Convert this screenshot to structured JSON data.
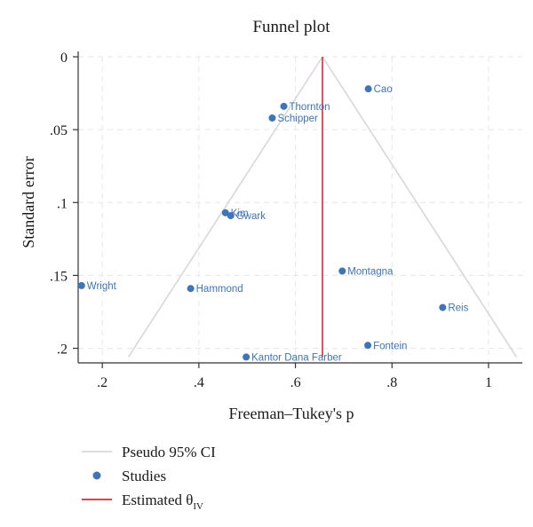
{
  "chart_data": {
    "type": "scatter",
    "title": "Funnel plot",
    "xlabel": "Freeman–Tukey's p",
    "ylabel": "Standard error",
    "xlim": [
      0.15,
      1.07
    ],
    "ylim": [
      0,
      0.21
    ],
    "y_reversed": true,
    "grid": true,
    "x_ticks": [
      0.2,
      0.4,
      0.6,
      0.8,
      1
    ],
    "x_tick_labels": [
      ".2",
      ".4",
      ".6",
      ".8",
      "1"
    ],
    "y_ticks": [
      0,
      0.05,
      0.1,
      0.15,
      0.2
    ],
    "y_tick_labels": [
      "0",
      ".05",
      ".1",
      ".15",
      ".2"
    ],
    "estimate": 0.656,
    "ci_max_se": 0.206,
    "ci_lines": [
      {
        "x": [
          0.656,
          0.254
        ],
        "y": [
          0,
          0.206
        ]
      },
      {
        "x": [
          0.656,
          1.058
        ],
        "y": [
          0,
          0.206
        ]
      }
    ],
    "series": [
      {
        "name": "Studies",
        "points": [
          {
            "label": "Cao",
            "x": 0.751,
            "y": 0.022
          },
          {
            "label": "Thornton",
            "x": 0.576,
            "y": 0.034
          },
          {
            "label": "Schipper",
            "x": 0.552,
            "y": 0.042
          },
          {
            "label": "Kim",
            "x": 0.455,
            "y": 0.107
          },
          {
            "label": "Gwark",
            "x": 0.466,
            "y": 0.109
          },
          {
            "label": "Montagna",
            "x": 0.697,
            "y": 0.147
          },
          {
            "label": "Wright",
            "x": 0.157,
            "y": 0.157
          },
          {
            "label": "Hammond",
            "x": 0.383,
            "y": 0.159
          },
          {
            "label": "Reis",
            "x": 0.905,
            "y": 0.172
          },
          {
            "label": "Fontein",
            "x": 0.75,
            "y": 0.198
          },
          {
            "label": "Kantor Dana Farber",
            "x": 0.498,
            "y": 0.206
          }
        ]
      }
    ],
    "legend": {
      "placement": "bottom",
      "entries": [
        {
          "text": "Pseudo 95% CI",
          "symbol": "line"
        },
        {
          "text": "Studies",
          "symbol": "dot"
        },
        {
          "text": "Estimated θ",
          "sub": "IV",
          "symbol": "line"
        }
      ]
    },
    "colors": {
      "points": "#3f74b8",
      "ci": "#d8d8d8",
      "estimate": "#d62a3c",
      "grid": "#e6e6e6",
      "axis": "#333333"
    }
  }
}
